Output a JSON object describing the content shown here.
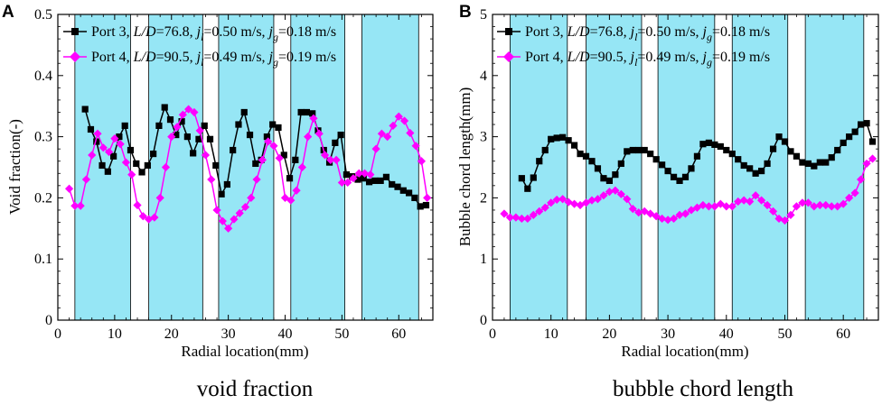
{
  "chart_data": [
    {
      "type": "line",
      "panel_label": "A",
      "caption": "void fraction",
      "xlabel": "Radial location(mm)",
      "ylabel": "Void fraction(-)",
      "xlim": [
        0,
        66
      ],
      "ylim": [
        0,
        0.5
      ],
      "xticks": [
        0,
        10,
        20,
        30,
        40,
        50,
        60
      ],
      "xtick_labels": [
        "0",
        "10",
        "20",
        "30",
        "40",
        "50",
        "60"
      ],
      "yticks": [
        0,
        0.1,
        0.2,
        0.3,
        0.4,
        0.5
      ],
      "ytick_labels": [
        "0",
        "0.1",
        "0.2",
        "0.3",
        "0.4",
        "0.5"
      ],
      "legend_position": "top-left",
      "shaded_bands": [
        [
          3,
          12.8
        ],
        [
          16,
          25.5
        ],
        [
          28.3,
          38
        ],
        [
          41,
          50.5
        ],
        [
          53.5,
          63.5
        ]
      ],
      "band_color": "#96e6f5",
      "series": [
        {
          "name": "Port 3, L/D=76.8, jl=0.50 m/s, jg=0.18 m/s",
          "legend_parts": {
            "a": "Port 3, ",
            "b": "L/D",
            "c": "=76.8, ",
            "d": "j",
            "e": "l",
            "f": "=0.50 m/s, ",
            "g": "j",
            "h": "g",
            "i": "=0.18 m/s"
          },
          "color": "#000000",
          "marker": "square",
          "x": [
            4.8,
            5.8,
            6.8,
            7.8,
            8.8,
            9.8,
            10.8,
            11.8,
            12.8,
            13.8,
            14.8,
            15.8,
            16.8,
            17.8,
            18.8,
            19.8,
            20.8,
            21.8,
            22.8,
            23.8,
            24.8,
            25.8,
            26.8,
            27.8,
            28.8,
            29.8,
            30.8,
            31.8,
            32.8,
            33.8,
            34.8,
            35.8,
            36.8,
            37.8,
            38.8,
            39.8,
            40.8,
            41.8,
            42.8,
            43.8,
            44.8,
            45.8,
            46.8,
            47.8,
            48.8,
            49.8,
            50.8,
            51.8,
            52.8,
            53.8,
            54.8,
            55.8,
            56.8,
            57.8,
            58.8,
            59.8,
            60.8,
            61.8,
            62.8,
            63.8,
            64.8
          ],
          "y": [
            0.345,
            0.312,
            0.292,
            0.253,
            0.243,
            0.268,
            0.3,
            0.318,
            0.278,
            0.256,
            0.242,
            0.253,
            0.272,
            0.318,
            0.348,
            0.328,
            0.303,
            0.325,
            0.3,
            0.273,
            0.296,
            0.318,
            0.296,
            0.253,
            0.206,
            0.222,
            0.278,
            0.32,
            0.34,
            0.303,
            0.256,
            0.262,
            0.3,
            0.32,
            0.315,
            0.27,
            0.232,
            0.262,
            0.34,
            0.34,
            0.338,
            0.31,
            0.278,
            0.258,
            0.29,
            0.303,
            0.238,
            0.235,
            0.23,
            0.232,
            0.226,
            0.228,
            0.228,
            0.234,
            0.222,
            0.218,
            0.212,
            0.208,
            0.2,
            0.186,
            0.188
          ]
        },
        {
          "name": "Port 4, L/D=90.5, jl=0.49 m/s, jg=0.19 m/s",
          "legend_parts": {
            "a": "Port 4, ",
            "b": "L/D",
            "c": "=90.5, ",
            "d": "j",
            "e": "l",
            "f": "=0.49 m/s, ",
            "g": "j",
            "h": "g",
            "i": "=0.19 m/s"
          },
          "color": "#ff00ff",
          "marker": "diamond",
          "x": [
            2.0,
            3.0,
            4.0,
            5.0,
            6.0,
            7.0,
            8.0,
            9.0,
            10.0,
            11.0,
            12.0,
            13.0,
            14.0,
            15.0,
            16.0,
            17.0,
            18.0,
            19.0,
            20.0,
            21.0,
            22.0,
            23.0,
            24.0,
            25.0,
            26.0,
            27.0,
            28.0,
            29.0,
            30.0,
            31.0,
            32.0,
            33.0,
            34.0,
            35.0,
            36.0,
            37.0,
            38.0,
            39.0,
            40.0,
            41.0,
            42.0,
            43.0,
            44.0,
            45.0,
            46.0,
            47.0,
            48.0,
            49.0,
            50.0,
            51.0,
            52.0,
            53.0,
            54.0,
            55.0,
            56.0,
            57.0,
            58.0,
            59.0,
            60.0,
            61.0,
            62.0,
            63.0,
            64.0,
            65.0
          ],
          "y": [
            0.215,
            0.187,
            0.187,
            0.23,
            0.27,
            0.305,
            0.282,
            0.275,
            0.297,
            0.288,
            0.258,
            0.238,
            0.188,
            0.17,
            0.165,
            0.168,
            0.2,
            0.25,
            0.3,
            0.316,
            0.336,
            0.345,
            0.34,
            0.31,
            0.27,
            0.23,
            0.18,
            0.162,
            0.15,
            0.165,
            0.175,
            0.185,
            0.2,
            0.23,
            0.262,
            0.292,
            0.285,
            0.265,
            0.2,
            0.196,
            0.212,
            0.25,
            0.3,
            0.33,
            0.305,
            0.27,
            0.262,
            0.262,
            0.225,
            0.225,
            0.232,
            0.24,
            0.24,
            0.238,
            0.28,
            0.305,
            0.3,
            0.318,
            0.333,
            0.326,
            0.306,
            0.285,
            0.26,
            0.2
          ]
        }
      ]
    },
    {
      "type": "line",
      "panel_label": "B",
      "caption": "bubble chord length",
      "xlabel": "Radial location(mm)",
      "ylabel": "Bubble chord length(mm)",
      "xlim": [
        0,
        66
      ],
      "ylim": [
        0,
        5
      ],
      "xticks": [
        0,
        10,
        20,
        30,
        40,
        50,
        60
      ],
      "xtick_labels": [
        "0",
        "10",
        "20",
        "30",
        "40",
        "50",
        "60"
      ],
      "yticks": [
        0,
        1,
        2,
        3,
        4,
        5
      ],
      "ytick_labels": [
        "0",
        "1",
        "2",
        "3",
        "4",
        "5"
      ],
      "legend_position": "top-left",
      "shaded_bands": [
        [
          3,
          12.8
        ],
        [
          16,
          25.5
        ],
        [
          28.3,
          38
        ],
        [
          41,
          50.5
        ],
        [
          53.5,
          63.5
        ]
      ],
      "band_color": "#96e6f5",
      "series": [
        {
          "name": "Port 3, L/D=76.8, jl=0.50 m/s, jg=0.18 m/s",
          "legend_parts": {
            "a": "Port 3, ",
            "b": "L/D",
            "c": "=76.8, ",
            "d": "j",
            "e": "l",
            "f": "=0.50 m/s, ",
            "g": "j",
            "h": "g",
            "i": "=0.18 m/s"
          },
          "color": "#000000",
          "marker": "square",
          "x": [
            5.0,
            6.0,
            7.0,
            8.0,
            9.0,
            10.0,
            11.0,
            12.0,
            13.0,
            14.0,
            15.0,
            16.0,
            17.0,
            18.0,
            19.0,
            20.0,
            21.0,
            22.0,
            23.0,
            24.0,
            25.0,
            26.0,
            27.0,
            28.0,
            29.0,
            30.0,
            31.0,
            32.0,
            33.0,
            34.0,
            35.0,
            36.0,
            37.0,
            38.0,
            39.0,
            40.0,
            41.0,
            42.0,
            43.0,
            44.0,
            45.0,
            46.0,
            47.0,
            48.0,
            49.0,
            50.0,
            51.0,
            52.0,
            53.0,
            54.0,
            55.0,
            56.0,
            57.0,
            58.0,
            59.0,
            60.0,
            61.0,
            62.0,
            63.0,
            64.0,
            65.0
          ],
          "y": [
            2.32,
            2.15,
            2.33,
            2.6,
            2.78,
            2.96,
            2.98,
            2.99,
            2.94,
            2.86,
            2.72,
            2.68,
            2.6,
            2.48,
            2.32,
            2.28,
            2.38,
            2.56,
            2.76,
            2.78,
            2.78,
            2.78,
            2.72,
            2.63,
            2.54,
            2.44,
            2.34,
            2.28,
            2.34,
            2.48,
            2.68,
            2.88,
            2.9,
            2.87,
            2.84,
            2.78,
            2.72,
            2.63,
            2.53,
            2.48,
            2.4,
            2.44,
            2.56,
            2.8,
            3.0,
            2.92,
            2.76,
            2.68,
            2.58,
            2.56,
            2.52,
            2.58,
            2.58,
            2.66,
            2.78,
            2.9,
            3.0,
            3.08,
            3.2,
            3.22,
            2.92
          ]
        },
        {
          "name": "Port 4, L/D=90.5, jl=0.49 m/s, jg=0.19 m/s",
          "legend_parts": {
            "a": "Port 4, ",
            "b": "L/D",
            "c": "=90.5, ",
            "d": "j",
            "e": "l",
            "f": "=0.49 m/s, ",
            "g": "j",
            "h": "g",
            "i": "=0.19 m/s"
          },
          "color": "#ff00ff",
          "marker": "diamond",
          "x": [
            2.0,
            3.0,
            4.0,
            5.0,
            6.0,
            7.0,
            8.0,
            9.0,
            10.0,
            11.0,
            12.0,
            13.0,
            14.0,
            15.0,
            16.0,
            17.0,
            18.0,
            19.0,
            20.0,
            21.0,
            22.0,
            23.0,
            24.0,
            25.0,
            26.0,
            27.0,
            28.0,
            29.0,
            30.0,
            31.0,
            32.0,
            33.0,
            34.0,
            35.0,
            36.0,
            37.0,
            38.0,
            39.0,
            40.0,
            41.0,
            42.0,
            43.0,
            44.0,
            45.0,
            46.0,
            47.0,
            48.0,
            49.0,
            50.0,
            51.0,
            52.0,
            53.0,
            54.0,
            55.0,
            56.0,
            57.0,
            58.0,
            59.0,
            60.0,
            61.0,
            62.0,
            63.0,
            64.0,
            65.0
          ],
          "y": [
            1.74,
            1.68,
            1.68,
            1.66,
            1.66,
            1.72,
            1.78,
            1.84,
            1.92,
            1.97,
            1.98,
            1.93,
            1.9,
            1.88,
            1.92,
            1.96,
            1.98,
            2.04,
            2.1,
            2.12,
            2.06,
            1.98,
            1.82,
            1.76,
            1.78,
            1.74,
            1.7,
            1.66,
            1.64,
            1.66,
            1.72,
            1.74,
            1.8,
            1.84,
            1.88,
            1.86,
            1.86,
            1.9,
            1.86,
            1.86,
            1.94,
            1.96,
            1.94,
            2.04,
            1.96,
            1.88,
            1.78,
            1.66,
            1.63,
            1.72,
            1.86,
            1.92,
            1.92,
            1.86,
            1.88,
            1.88,
            1.86,
            1.86,
            1.9,
            2.0,
            2.08,
            2.3,
            2.56,
            2.64
          ]
        }
      ]
    }
  ]
}
